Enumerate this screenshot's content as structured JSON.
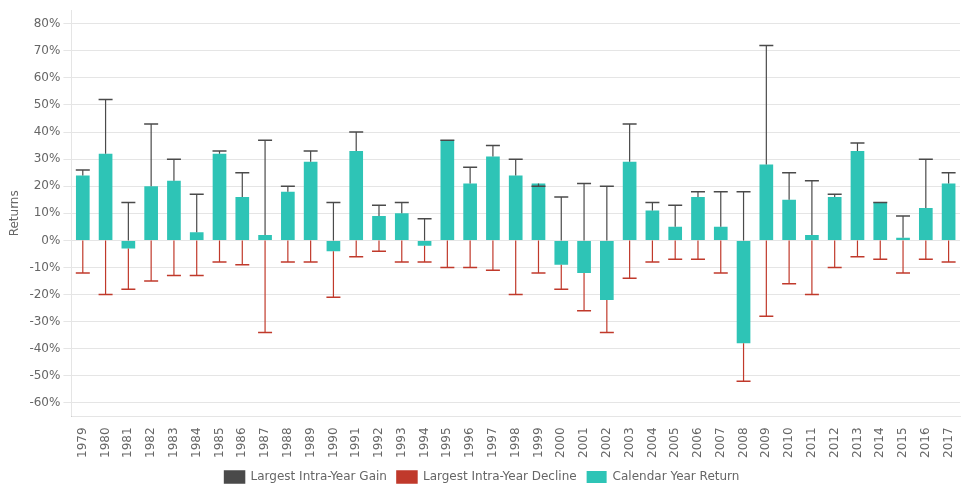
{
  "chart_data": {
    "type": "bar",
    "categories": [
      "1979",
      "1980",
      "1981",
      "1982",
      "1983",
      "1984",
      "1985",
      "1986",
      "1987",
      "1988",
      "1989",
      "1990",
      "1991",
      "1992",
      "1993",
      "1994",
      "1995",
      "1996",
      "1997",
      "1998",
      "1999",
      "2000",
      "2001",
      "2002",
      "2003",
      "2004",
      "2005",
      "2006",
      "2007",
      "2008",
      "2009",
      "2010",
      "2011",
      "2012",
      "2013",
      "2014",
      "2015",
      "2016",
      "2017"
    ],
    "series": [
      {
        "name": "Calendar Year Return",
        "type": "bar",
        "color": "#2ec4b6",
        "values": [
          24,
          32,
          -3,
          20,
          22,
          3,
          32,
          16,
          2,
          18,
          29,
          -4,
          33,
          9,
          10,
          -2,
          37,
          21,
          31,
          24,
          21,
          -9,
          -12,
          -22,
          29,
          11,
          5,
          16,
          5,
          -38,
          28,
          15,
          2,
          16,
          33,
          14,
          1,
          12,
          21
        ]
      },
      {
        "name": "Largest Intra-Year Gain",
        "type": "whisker",
        "color": "#4a4a4a",
        "values": [
          26,
          52,
          14,
          43,
          30,
          17,
          33,
          25,
          37,
          20,
          33,
          14,
          40,
          13,
          14,
          8,
          37,
          27,
          35,
          30,
          20,
          16,
          21,
          20,
          43,
          14,
          13,
          18,
          18,
          18,
          72,
          25,
          22,
          17,
          36,
          14,
          9,
          30,
          25
        ]
      },
      {
        "name": "Largest Intra-Year Decline",
        "type": "whisker",
        "color": "#c0392b",
        "values": [
          -12,
          -20,
          -18,
          -15,
          -13,
          -13,
          -8,
          -9,
          -34,
          -8,
          -8,
          -21,
          -6,
          -4,
          -8,
          -8,
          -10,
          -10,
          -11,
          -20,
          -12,
          -18,
          -26,
          -34,
          -14,
          -8,
          -7,
          -7,
          -12,
          -52,
          -28,
          -16,
          -20,
          -10,
          -6,
          -7,
          -12,
          -7,
          -8
        ]
      }
    ],
    "ylabel": "Returns",
    "ylim": [
      -65,
      85
    ],
    "yticks": [
      {
        "value": -60,
        "label": "-60%"
      },
      {
        "value": -50,
        "label": "-50%"
      },
      {
        "value": -40,
        "label": "-40%"
      },
      {
        "value": -30,
        "label": "-30%"
      },
      {
        "value": -20,
        "label": "-20%"
      },
      {
        "value": -10,
        "label": "-10%"
      },
      {
        "value": 0,
        "label": "0%"
      },
      {
        "value": 10,
        "label": "10%"
      },
      {
        "value": 20,
        "label": "20%"
      },
      {
        "value": 30,
        "label": "30%"
      },
      {
        "value": 40,
        "label": "40%"
      },
      {
        "value": 50,
        "label": "50%"
      },
      {
        "value": 60,
        "label": "60%"
      },
      {
        "value": 70,
        "label": "70%"
      },
      {
        "value": 80,
        "label": "80%"
      }
    ],
    "grid": true,
    "legend": "bottom"
  }
}
